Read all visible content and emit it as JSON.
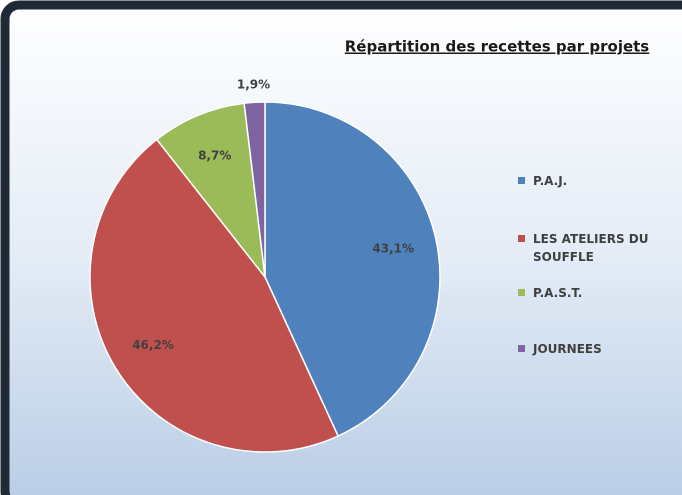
{
  "chart_data": {
    "type": "pie",
    "title": "Répartition des recettes par projets",
    "categories": [
      "P.A.J.",
      "LES ATELIERS DU SOUFFLE",
      "P.A.S.T.",
      "JOURNEES"
    ],
    "values": [
      43.1,
      46.2,
      8.7,
      1.9
    ],
    "value_labels": [
      "43,1%",
      "46,2%",
      "8,7%",
      "1,9%"
    ],
    "colors": [
      "#4f81bd",
      "#c0504d",
      "#9bbb59",
      "#8064a2"
    ],
    "legend": "right"
  }
}
